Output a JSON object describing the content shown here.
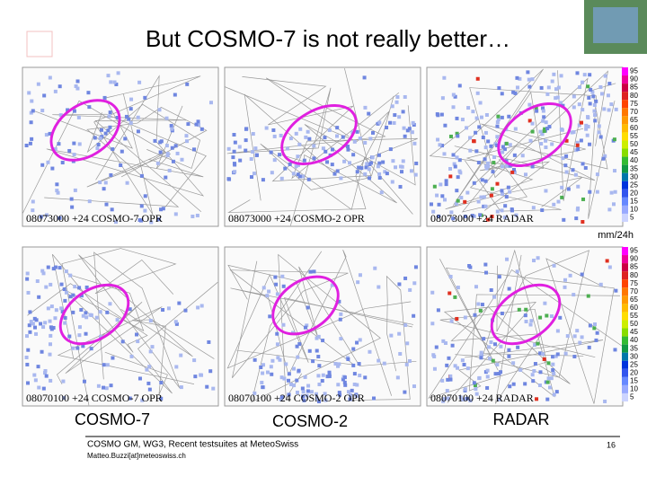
{
  "header": {
    "title": "But COSMO-7 is not really better…"
  },
  "panels": [
    {
      "label": "08073000 +24 COSMO-7 OPR"
    },
    {
      "label": "08073000 +24 COSMO-2 OPR"
    },
    {
      "label": "08073000 +24 RADAR"
    },
    {
      "label": "08070100 +24 COSMO-7 OPR"
    },
    {
      "label": "08070100 +24 COSMO-2 OPR"
    },
    {
      "label": "08070100 +24 RADAR"
    }
  ],
  "colorbar": {
    "unit": "mm/24h",
    "ticks": [
      95,
      90,
      85,
      80,
      75,
      70,
      65,
      60,
      55,
      50,
      45,
      40,
      35,
      30,
      25,
      20,
      15,
      10,
      5
    ]
  },
  "columns": [
    "COSMO-7",
    "COSMO-2",
    "RADAR"
  ],
  "footer": {
    "text": "COSMO GM, WG3, Recent testsuites at MeteoSwiss",
    "email": "Matteo.Buzzi[at]meteoswiss.ch",
    "page": "16"
  }
}
